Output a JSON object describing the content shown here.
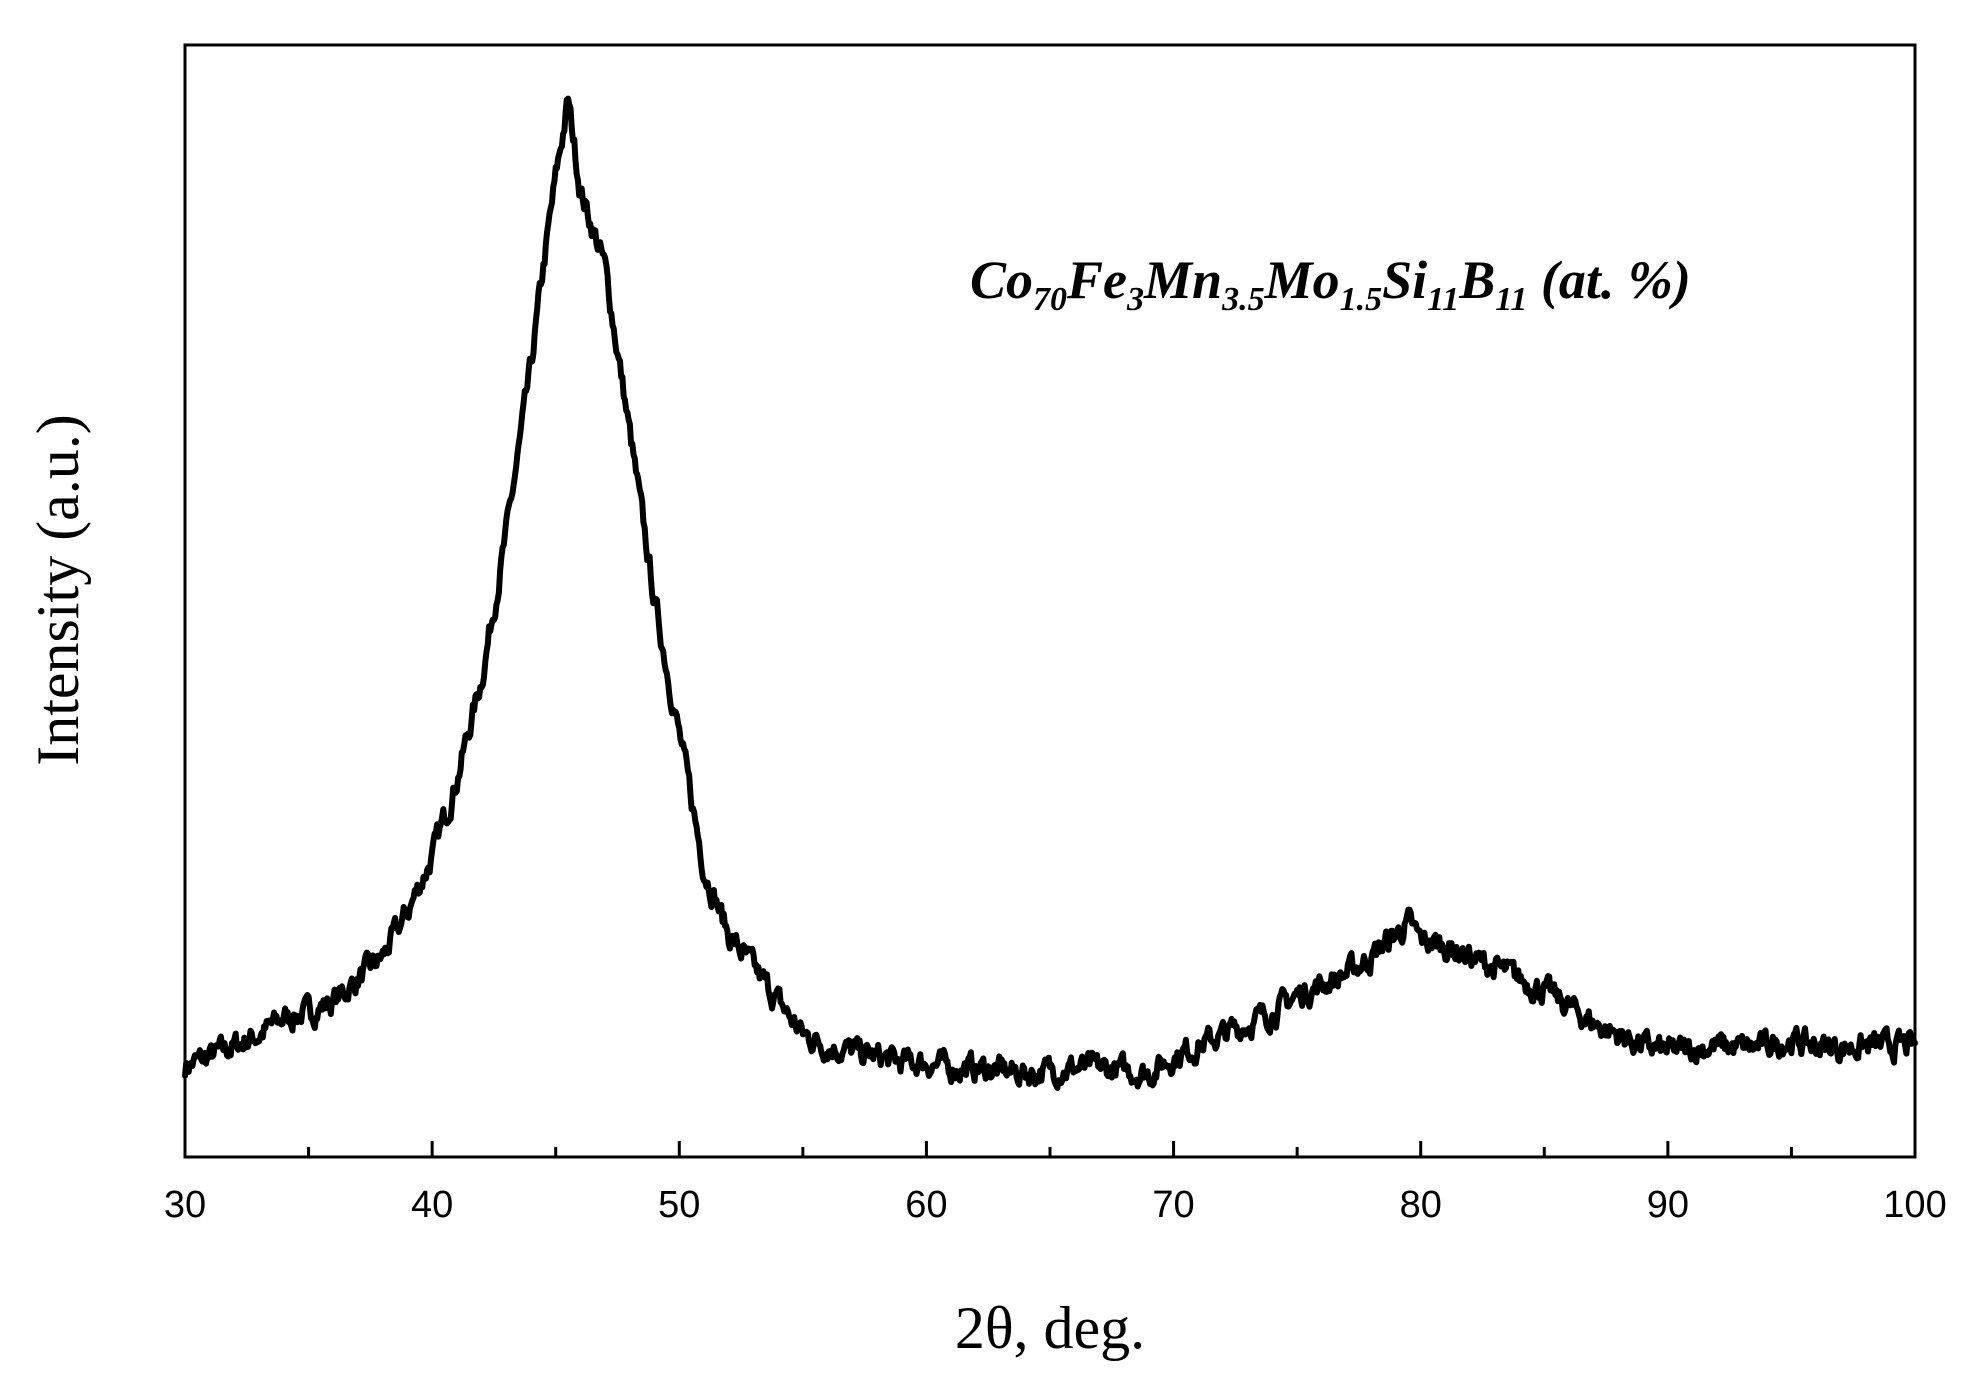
{
  "chart_data": {
    "type": "line",
    "title": "",
    "xlabel": "2θ, deg.",
    "ylabel": "Intensity (a.u.)",
    "xlim": [
      30,
      100
    ],
    "ylim": [
      0,
      1
    ],
    "x_ticks": [
      30,
      40,
      50,
      60,
      70,
      80,
      90,
      100
    ],
    "x_minor_step": 5,
    "y_tick_labels": false,
    "grid": false,
    "legend": "none",
    "line_color": "#000000",
    "annotation": {
      "parts": [
        {
          "text": "Co",
          "sub": false
        },
        {
          "text": "70",
          "sub": true
        },
        {
          "text": "Fe",
          "sub": false
        },
        {
          "text": "3",
          "sub": true
        },
        {
          "text": "Mn",
          "sub": false
        },
        {
          "text": "3.5",
          "sub": true
        },
        {
          "text": "Mo",
          "sub": false
        },
        {
          "text": "1.5",
          "sub": true
        },
        {
          "text": "Si",
          "sub": false
        },
        {
          "text": "11",
          "sub": true
        },
        {
          "text": "B",
          "sub": false
        },
        {
          "text": "11",
          "sub": true
        },
        {
          "text": " (at. %)",
          "sub": false
        }
      ]
    },
    "series": [
      {
        "x": [
          30,
          31,
          32,
          33,
          34,
          35,
          36,
          37,
          38,
          39,
          40,
          41,
          42,
          43,
          44,
          44.5,
          45,
          45.5,
          46,
          47,
          48,
          49,
          50,
          51,
          52,
          53,
          54,
          55,
          56,
          57,
          58,
          59,
          60,
          61,
          62,
          63,
          64,
          65,
          66,
          67,
          68,
          69,
          70,
          71,
          72,
          73,
          74,
          75,
          76,
          77,
          78,
          79,
          79.5,
          80,
          81,
          82,
          83,
          84,
          85,
          86,
          87,
          88,
          89,
          90,
          91,
          92,
          93,
          94,
          95,
          96,
          97,
          98,
          99,
          100
        ],
        "y": [
          0.082,
          0.09,
          0.1,
          0.11,
          0.125,
          0.13,
          0.14,
          0.16,
          0.18,
          0.22,
          0.27,
          0.34,
          0.43,
          0.56,
          0.71,
          0.8,
          0.88,
          0.95,
          0.87,
          0.8,
          0.65,
          0.5,
          0.38,
          0.26,
          0.2,
          0.17,
          0.14,
          0.11,
          0.1,
          0.095,
          0.09,
          0.085,
          0.085,
          0.08,
          0.08,
          0.078,
          0.075,
          0.078,
          0.08,
          0.08,
          0.078,
          0.075,
          0.09,
          0.1,
          0.11,
          0.12,
          0.13,
          0.145,
          0.155,
          0.165,
          0.18,
          0.2,
          0.21,
          0.195,
          0.19,
          0.18,
          0.17,
          0.16,
          0.15,
          0.135,
          0.12,
          0.11,
          0.1,
          0.095,
          0.097,
          0.1,
          0.098,
          0.1,
          0.105,
          0.1,
          0.098,
          0.1,
          0.1,
          0.1
        ]
      }
    ]
  }
}
